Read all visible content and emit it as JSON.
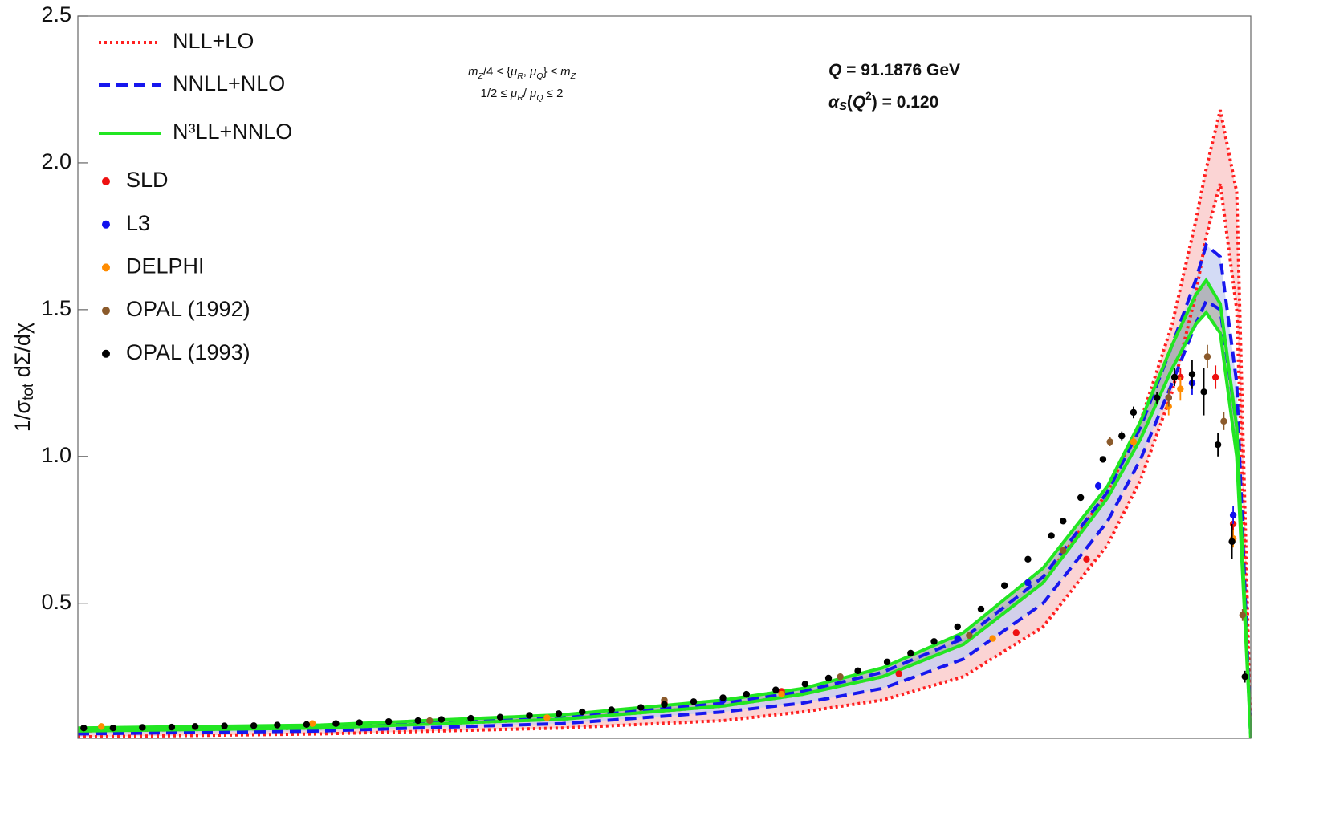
{
  "chart_data": {
    "type": "line",
    "y_label": {
      "prefix": "1/σ",
      "sub": "tot",
      "suffix": "  dΣ/dχ"
    },
    "xlim": [
      0,
      1
    ],
    "ylim": [
      0.04,
      2.5
    ],
    "yticks": [
      0.5,
      {
        "value": 1.0,
        "label": "1.0"
      },
      1.5,
      {
        "value": 2.0,
        "label": "2.0"
      },
      2.5
    ],
    "x": [
      0,
      0.207,
      0.413,
      0.55,
      0.618,
      0.686,
      0.755,
      0.823,
      0.878,
      0.906,
      0.933,
      0.953,
      0.962,
      0.974,
      0.988,
      1.0
    ],
    "series": [
      {
        "name": "NLL+LO",
        "color": "#ff1f1f",
        "fill": "#f9c6c6",
        "dash": "dotted",
        "upper": [
          0.065,
          0.075,
          0.105,
          0.15,
          0.19,
          0.25,
          0.36,
          0.57,
          0.88,
          1.12,
          1.45,
          1.8,
          1.98,
          2.18,
          1.9,
          0.04
        ],
        "lower": [
          0.045,
          0.055,
          0.075,
          0.1,
          0.13,
          0.17,
          0.25,
          0.42,
          0.7,
          0.92,
          1.22,
          1.55,
          1.75,
          1.93,
          1.5,
          0.04
        ]
      },
      {
        "name": "NNLL+NLO",
        "color": "#1717ee",
        "fill": "#c4cff2",
        "dash": "dashed",
        "upper": [
          0.07,
          0.08,
          0.115,
          0.16,
          0.2,
          0.265,
          0.38,
          0.59,
          0.88,
          1.1,
          1.38,
          1.6,
          1.72,
          1.68,
          1.25,
          0.04
        ],
        "lower": [
          0.055,
          0.065,
          0.09,
          0.13,
          0.16,
          0.21,
          0.31,
          0.5,
          0.78,
          0.99,
          1.25,
          1.45,
          1.53,
          1.5,
          1.1,
          0.04
        ]
      },
      {
        "name": "N³LL+NNLO",
        "color": "#22e622",
        "fill": "#a8a8a8",
        "dash": "solid",
        "upper": [
          0.075,
          0.085,
          0.12,
          0.17,
          0.21,
          0.28,
          0.4,
          0.62,
          0.9,
          1.12,
          1.38,
          1.55,
          1.6,
          1.52,
          1.1,
          0.04
        ],
        "lower": [
          0.065,
          0.075,
          0.105,
          0.15,
          0.19,
          0.25,
          0.36,
          0.57,
          0.86,
          1.06,
          1.3,
          1.45,
          1.49,
          1.42,
          1.0,
          0.04
        ]
      }
    ],
    "datasets": [
      {
        "name": "SLD",
        "color": "#ee1111",
        "x": [
          0.5,
          0.6,
          0.7,
          0.8,
          0.86,
          0.93,
          0.94,
          0.97,
          0.985
        ],
        "values": [
          0.16,
          0.2,
          0.26,
          0.4,
          0.65,
          1.2,
          1.27,
          1.27,
          0.77
        ],
        "errors": [
          0.005,
          0.005,
          0.006,
          0.008,
          0.01,
          0.02,
          0.03,
          0.04,
          0.04
        ]
      },
      {
        "name": "L3",
        "color": "#1111ee",
        "x": [
          0.55,
          0.75,
          0.81,
          0.87,
          0.93,
          0.95,
          0.985
        ],
        "values": [
          0.17,
          0.38,
          0.57,
          0.9,
          1.2,
          1.25,
          0.8
        ],
        "errors": [
          0.005,
          0.008,
          0.01,
          0.015,
          0.03,
          0.04,
          0.03
        ]
      },
      {
        "name": "DELPHI",
        "color": "#ff8c00",
        "x": [
          0.02,
          0.2,
          0.4,
          0.6,
          0.78,
          0.9,
          0.93,
          0.94,
          0.985
        ],
        "values": [
          0.08,
          0.09,
          0.11,
          0.19,
          0.38,
          1.05,
          1.17,
          1.23,
          0.72
        ],
        "errors": [
          0.005,
          0.005,
          0.005,
          0.006,
          0.008,
          0.02,
          0.03,
          0.04,
          0.03
        ]
      },
      {
        "name": "OPAL (1992)",
        "color": "#8b5a2b",
        "x": [
          0.1,
          0.3,
          0.5,
          0.65,
          0.76,
          0.84,
          0.88,
          0.93,
          0.963,
          0.977,
          0.993
        ],
        "values": [
          0.08,
          0.1,
          0.17,
          0.25,
          0.39,
          0.68,
          1.05,
          1.2,
          1.34,
          1.12,
          0.46
        ],
        "errors": [
          0.005,
          0.005,
          0.006,
          0.006,
          0.008,
          0.01,
          0.015,
          0.03,
          0.04,
          0.03,
          0.02
        ]
      },
      {
        "name": "OPAL (1993)",
        "color": "#000000",
        "x": [
          0.005,
          0.03,
          0.055,
          0.08,
          0.1,
          0.125,
          0.15,
          0.17,
          0.195,
          0.22,
          0.24,
          0.265,
          0.29,
          0.31,
          0.335,
          0.36,
          0.385,
          0.41,
          0.43,
          0.455,
          0.48,
          0.5,
          0.525,
          0.55,
          0.57,
          0.595,
          0.62,
          0.64,
          0.665,
          0.69,
          0.71,
          0.73,
          0.75,
          0.77,
          0.79,
          0.81,
          0.83,
          0.84,
          0.855,
          0.874,
          0.89,
          0.9,
          0.92,
          0.935,
          0.95,
          0.96,
          0.972,
          0.984,
          0.995
        ],
        "values": [
          0.075,
          0.075,
          0.077,
          0.078,
          0.08,
          0.082,
          0.083,
          0.085,
          0.087,
          0.09,
          0.093,
          0.097,
          0.1,
          0.104,
          0.108,
          0.112,
          0.118,
          0.124,
          0.13,
          0.137,
          0.145,
          0.155,
          0.165,
          0.178,
          0.19,
          0.205,
          0.225,
          0.245,
          0.27,
          0.3,
          0.33,
          0.37,
          0.42,
          0.48,
          0.56,
          0.65,
          0.73,
          0.78,
          0.86,
          0.99,
          1.07,
          1.15,
          1.2,
          1.27,
          1.28,
          1.22,
          1.04,
          0.71,
          0.25
        ],
        "errors": [
          0.005,
          0.005,
          0.005,
          0.005,
          0.005,
          0.005,
          0.005,
          0.005,
          0.005,
          0.005,
          0.005,
          0.005,
          0.005,
          0.005,
          0.005,
          0.005,
          0.005,
          0.005,
          0.005,
          0.005,
          0.005,
          0.005,
          0.005,
          0.005,
          0.005,
          0.005,
          0.005,
          0.005,
          0.005,
          0.005,
          0.008,
          0.008,
          0.008,
          0.008,
          0.008,
          0.008,
          0.008,
          0.008,
          0.008,
          0.008,
          0.015,
          0.02,
          0.02,
          0.03,
          0.05,
          0.08,
          0.04,
          0.06,
          0.02
        ]
      }
    ],
    "annotations": [
      [
        {
          "t": "m",
          "s": "i"
        },
        {
          "t": "Z",
          "s": "sub"
        },
        {
          "t": "/4 ≤ {",
          "s": ""
        },
        {
          "t": "μ",
          "s": "i"
        },
        {
          "t": "R",
          "s": "sub"
        },
        {
          "t": ", ",
          "s": ""
        },
        {
          "t": "μ",
          "s": "i"
        },
        {
          "t": "Q",
          "s": "sub"
        },
        {
          "t": "} ≤ ",
          "s": ""
        },
        {
          "t": "m",
          "s": "i"
        },
        {
          "t": "Z",
          "s": "sub"
        }
      ],
      [
        {
          "t": "1/2 ≤ ",
          "s": ""
        },
        {
          "t": "μ",
          "s": "i"
        },
        {
          "t": "R",
          "s": "sub"
        },
        {
          "t": "/ ",
          "s": ""
        },
        {
          "t": "μ",
          "s": "i"
        },
        {
          "t": "Q",
          "s": "sub"
        },
        {
          "t": " ≤ 2",
          "s": ""
        }
      ],
      [
        {
          "t": "Q",
          "s": "i"
        },
        {
          "t": " =  91.1876 GeV",
          "s": ""
        }
      ],
      [
        {
          "t": "α",
          "s": "i"
        },
        {
          "t": "S",
          "s": "sub"
        },
        {
          "t": "(",
          "s": ""
        },
        {
          "t": "Q",
          "s": "i"
        },
        {
          "t": "2",
          "s": "sup"
        },
        {
          "t": ") = 0.120",
          "s": ""
        }
      ]
    ]
  }
}
